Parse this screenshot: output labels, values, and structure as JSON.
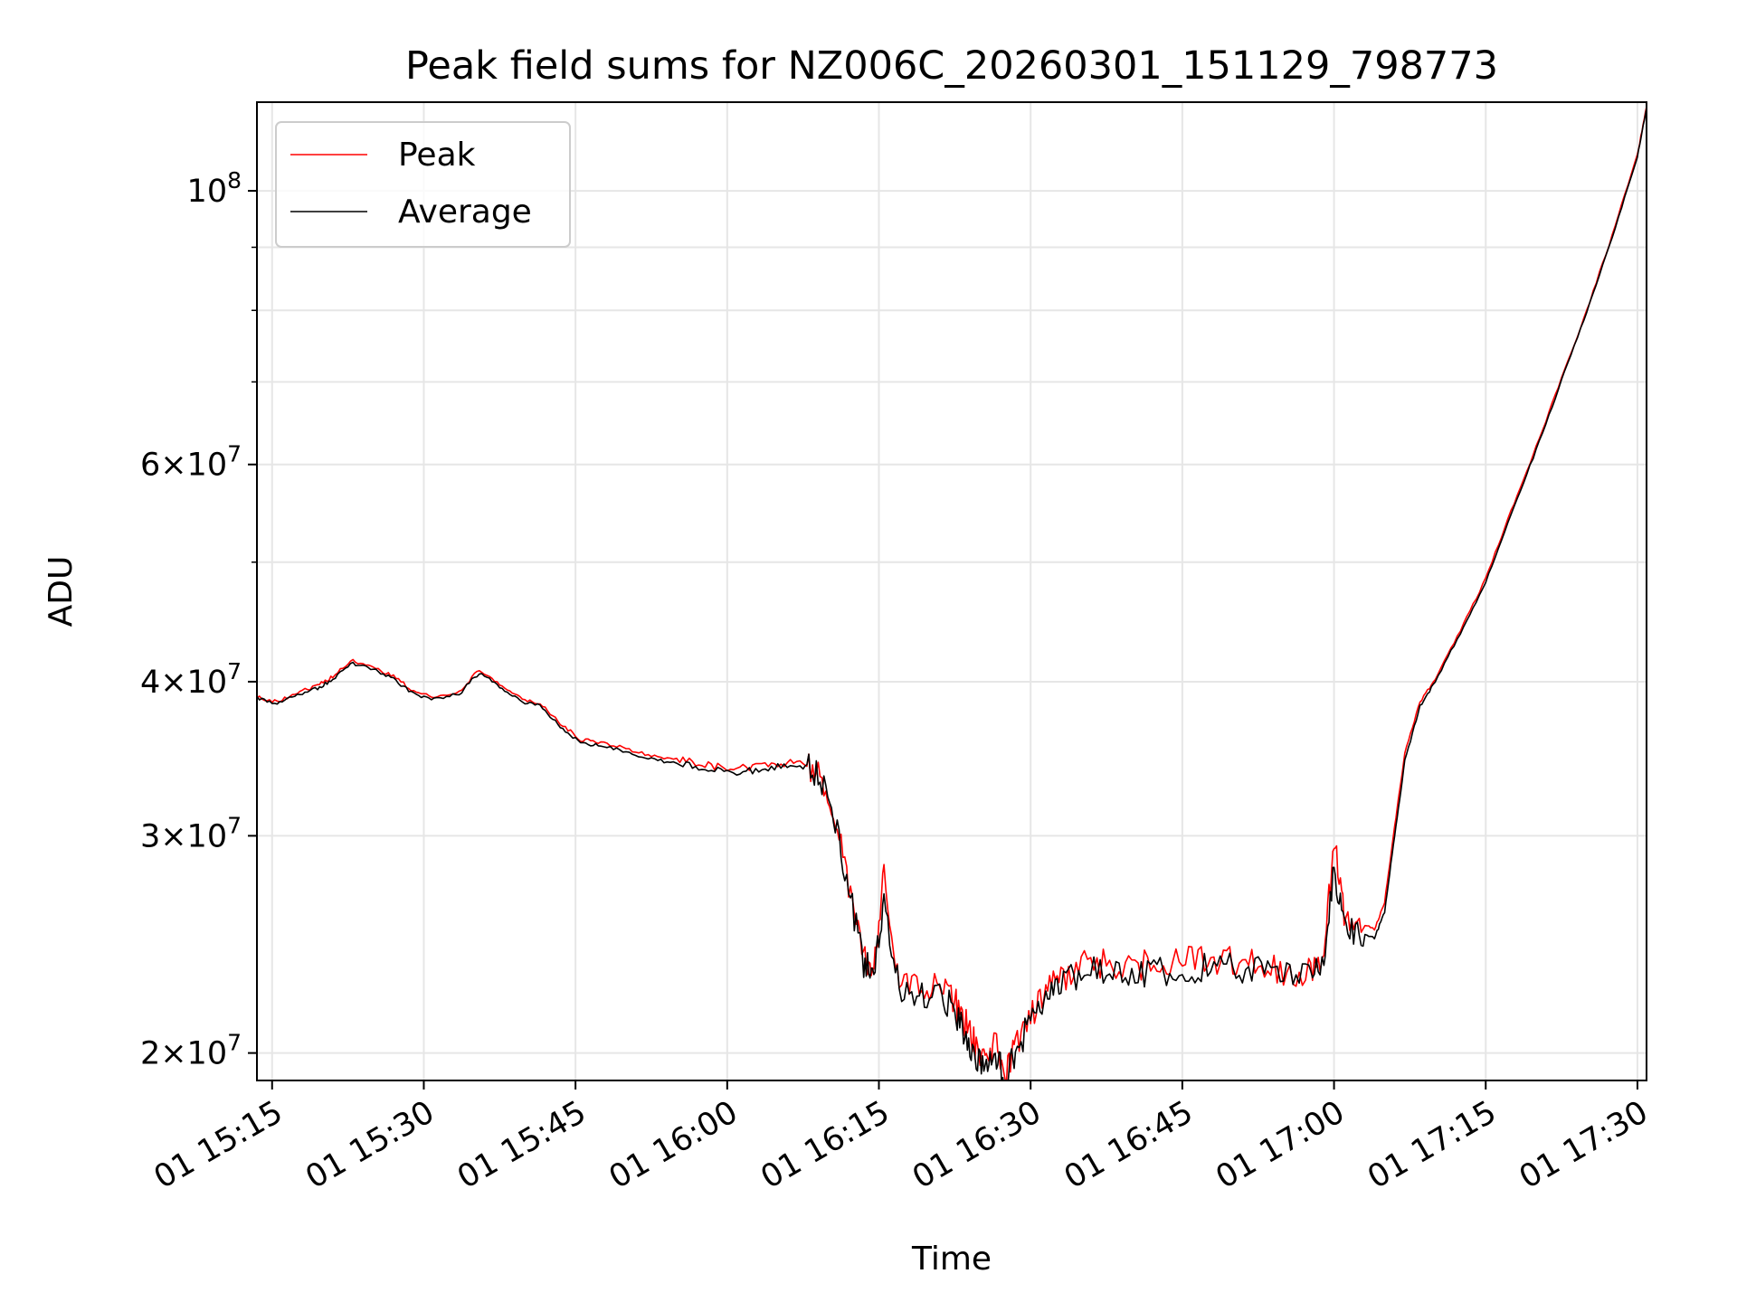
{
  "chart_data": {
    "type": "line",
    "title": "Peak field sums for NZ006C_20260301_151129_798773",
    "xlabel": "Time",
    "ylabel": "ADU",
    "yscale": "log",
    "ylim": [
      19000000,
      118000000
    ],
    "xlim_minutes": [
      913.5,
      1050.9
    ],
    "x_unit": "minutes since 01 00:00",
    "grid": true,
    "legend_position": "upper left",
    "x_ticks": [
      {
        "value": 915,
        "label": "01 15:15"
      },
      {
        "value": 930,
        "label": "01 15:30"
      },
      {
        "value": 945,
        "label": "01 15:45"
      },
      {
        "value": 960,
        "label": "01 16:00"
      },
      {
        "value": 975,
        "label": "01 16:15"
      },
      {
        "value": 990,
        "label": "01 16:30"
      },
      {
        "value": 1005,
        "label": "01 16:45"
      },
      {
        "value": 1020,
        "label": "01 17:00"
      },
      {
        "value": 1035,
        "label": "01 17:15"
      },
      {
        "value": 1050,
        "label": "01 17:30"
      }
    ],
    "y_major_ticks": [
      {
        "value": 20000000,
        "mantissa": "2",
        "base": "10",
        "exp": "7"
      },
      {
        "value": 30000000,
        "mantissa": "3",
        "base": "10",
        "exp": "7"
      },
      {
        "value": 40000000,
        "mantissa": "4",
        "base": "10",
        "exp": "7"
      },
      {
        "value": 60000000,
        "mantissa": "6",
        "base": "10",
        "exp": "7"
      },
      {
        "value": 100000000,
        "mantissa": "",
        "base": "10",
        "exp": "8"
      }
    ],
    "y_minor_gridlines": [
      50000000,
      70000000,
      80000000,
      90000000
    ],
    "times_sign": "×",
    "series": [
      {
        "name": "Peak",
        "color": "#ff0000",
        "x": [
          913.5,
          915.5,
          917.5,
          919.5,
          921.0,
          923.0,
          925.0,
          927.0,
          929.0,
          931.0,
          933.5,
          935.5,
          937.5,
          939.5,
          941.5,
          943.5,
          945.5,
          947.5,
          950.0,
          952.5,
          955.0,
          957.5,
          960.0,
          962.5,
          965.0,
          967.5,
          969.0,
          970.5,
          972.0,
          973.5,
          974.5,
          975.5,
          977.0,
          979.0,
          981.0,
          982.5,
          983.5,
          984.5,
          985.5,
          986.5,
          987.5,
          988.5,
          990.0,
          991.5,
          993.0,
          995.0,
          997.5,
          1000.0,
          1002.5,
          1005.0,
          1007.5,
          1010.0,
          1012.5,
          1015.0,
          1017.5,
          1019.0,
          1020.0,
          1021.0,
          1022.5,
          1024.0,
          1025.0,
          1026.0,
          1027.0,
          1028.5,
          1030.0,
          1032.5,
          1035.0,
          1037.5,
          1040.0,
          1042.5,
          1045.0,
          1047.5,
          1050.0,
          1050.9
        ],
        "y": [
          38900000,
          38500000,
          39200000,
          39700000,
          40400000,
          41600000,
          41100000,
          40400000,
          39300000,
          38900000,
          39300000,
          40900000,
          39800000,
          38800000,
          38400000,
          37000000,
          35900000,
          35700000,
          35300000,
          34800000,
          34600000,
          34300000,
          34000000,
          34100000,
          34300000,
          34400000,
          33800000,
          31500000,
          27500000,
          24000000,
          23500000,
          27800000,
          22800000,
          22500000,
          22800000,
          22000000,
          21200000,
          20300000,
          19600000,
          20400000,
          19200000,
          20300000,
          21500000,
          22500000,
          23000000,
          23600000,
          23600000,
          23500000,
          23600000,
          23700000,
          23800000,
          23800000,
          23600000,
          23300000,
          23300000,
          24000000,
          29800000,
          26000000,
          25500000,
          25200000,
          26500000,
          30500000,
          35000000,
          38500000,
          40200000,
          44000000,
          48500000,
          55000000,
          62000000,
          70500000,
          80000000,
          92000000,
          107000000,
          117000000
        ]
      },
      {
        "name": "Average",
        "color": "#000000",
        "x": [
          913.5,
          915.5,
          917.5,
          919.5,
          921.0,
          923.0,
          925.0,
          927.0,
          929.0,
          931.0,
          933.5,
          935.5,
          937.5,
          939.5,
          941.5,
          943.5,
          945.5,
          947.5,
          950.0,
          952.5,
          955.0,
          957.5,
          960.0,
          962.5,
          965.0,
          967.5,
          969.0,
          970.5,
          972.0,
          973.5,
          974.5,
          975.5,
          977.0,
          979.0,
          981.0,
          982.5,
          983.5,
          984.5,
          985.5,
          986.5,
          987.5,
          988.5,
          990.0,
          991.5,
          993.0,
          995.0,
          997.5,
          1000.0,
          1002.5,
          1005.0,
          1007.5,
          1010.0,
          1012.5,
          1015.0,
          1017.5,
          1019.0,
          1020.0,
          1021.0,
          1022.5,
          1024.0,
          1025.0,
          1026.0,
          1027.0,
          1028.5,
          1030.0,
          1032.5,
          1035.0,
          1037.5,
          1040.0,
          1042.5,
          1045.0,
          1047.5,
          1050.0,
          1050.9
        ],
        "y": [
          38800000,
          38400000,
          39000000,
          39500000,
          40200000,
          41400000,
          40900000,
          40200000,
          39100000,
          38700000,
          39100000,
          40700000,
          39600000,
          38600000,
          38200000,
          36800000,
          35700000,
          35500000,
          35100000,
          34600000,
          34400000,
          34100000,
          33800000,
          33900000,
          34100000,
          34200000,
          33600000,
          31200000,
          27200000,
          23700000,
          23200000,
          26800000,
          22500000,
          22200000,
          22500000,
          21600000,
          20800000,
          19900000,
          19300000,
          20100000,
          19000000,
          20000000,
          21200000,
          22200000,
          22700000,
          23300000,
          23300000,
          23200000,
          23300000,
          23400000,
          23500000,
          23500000,
          23300000,
          23000000,
          23000000,
          23600000,
          28500000,
          25200000,
          25000000,
          24800000,
          26000000,
          30000000,
          34500000,
          38200000,
          40000000,
          43800000,
          48200000,
          54700000,
          61700000,
          70200000,
          79700000,
          91700000,
          106700000,
          116700000
        ]
      }
    ]
  }
}
